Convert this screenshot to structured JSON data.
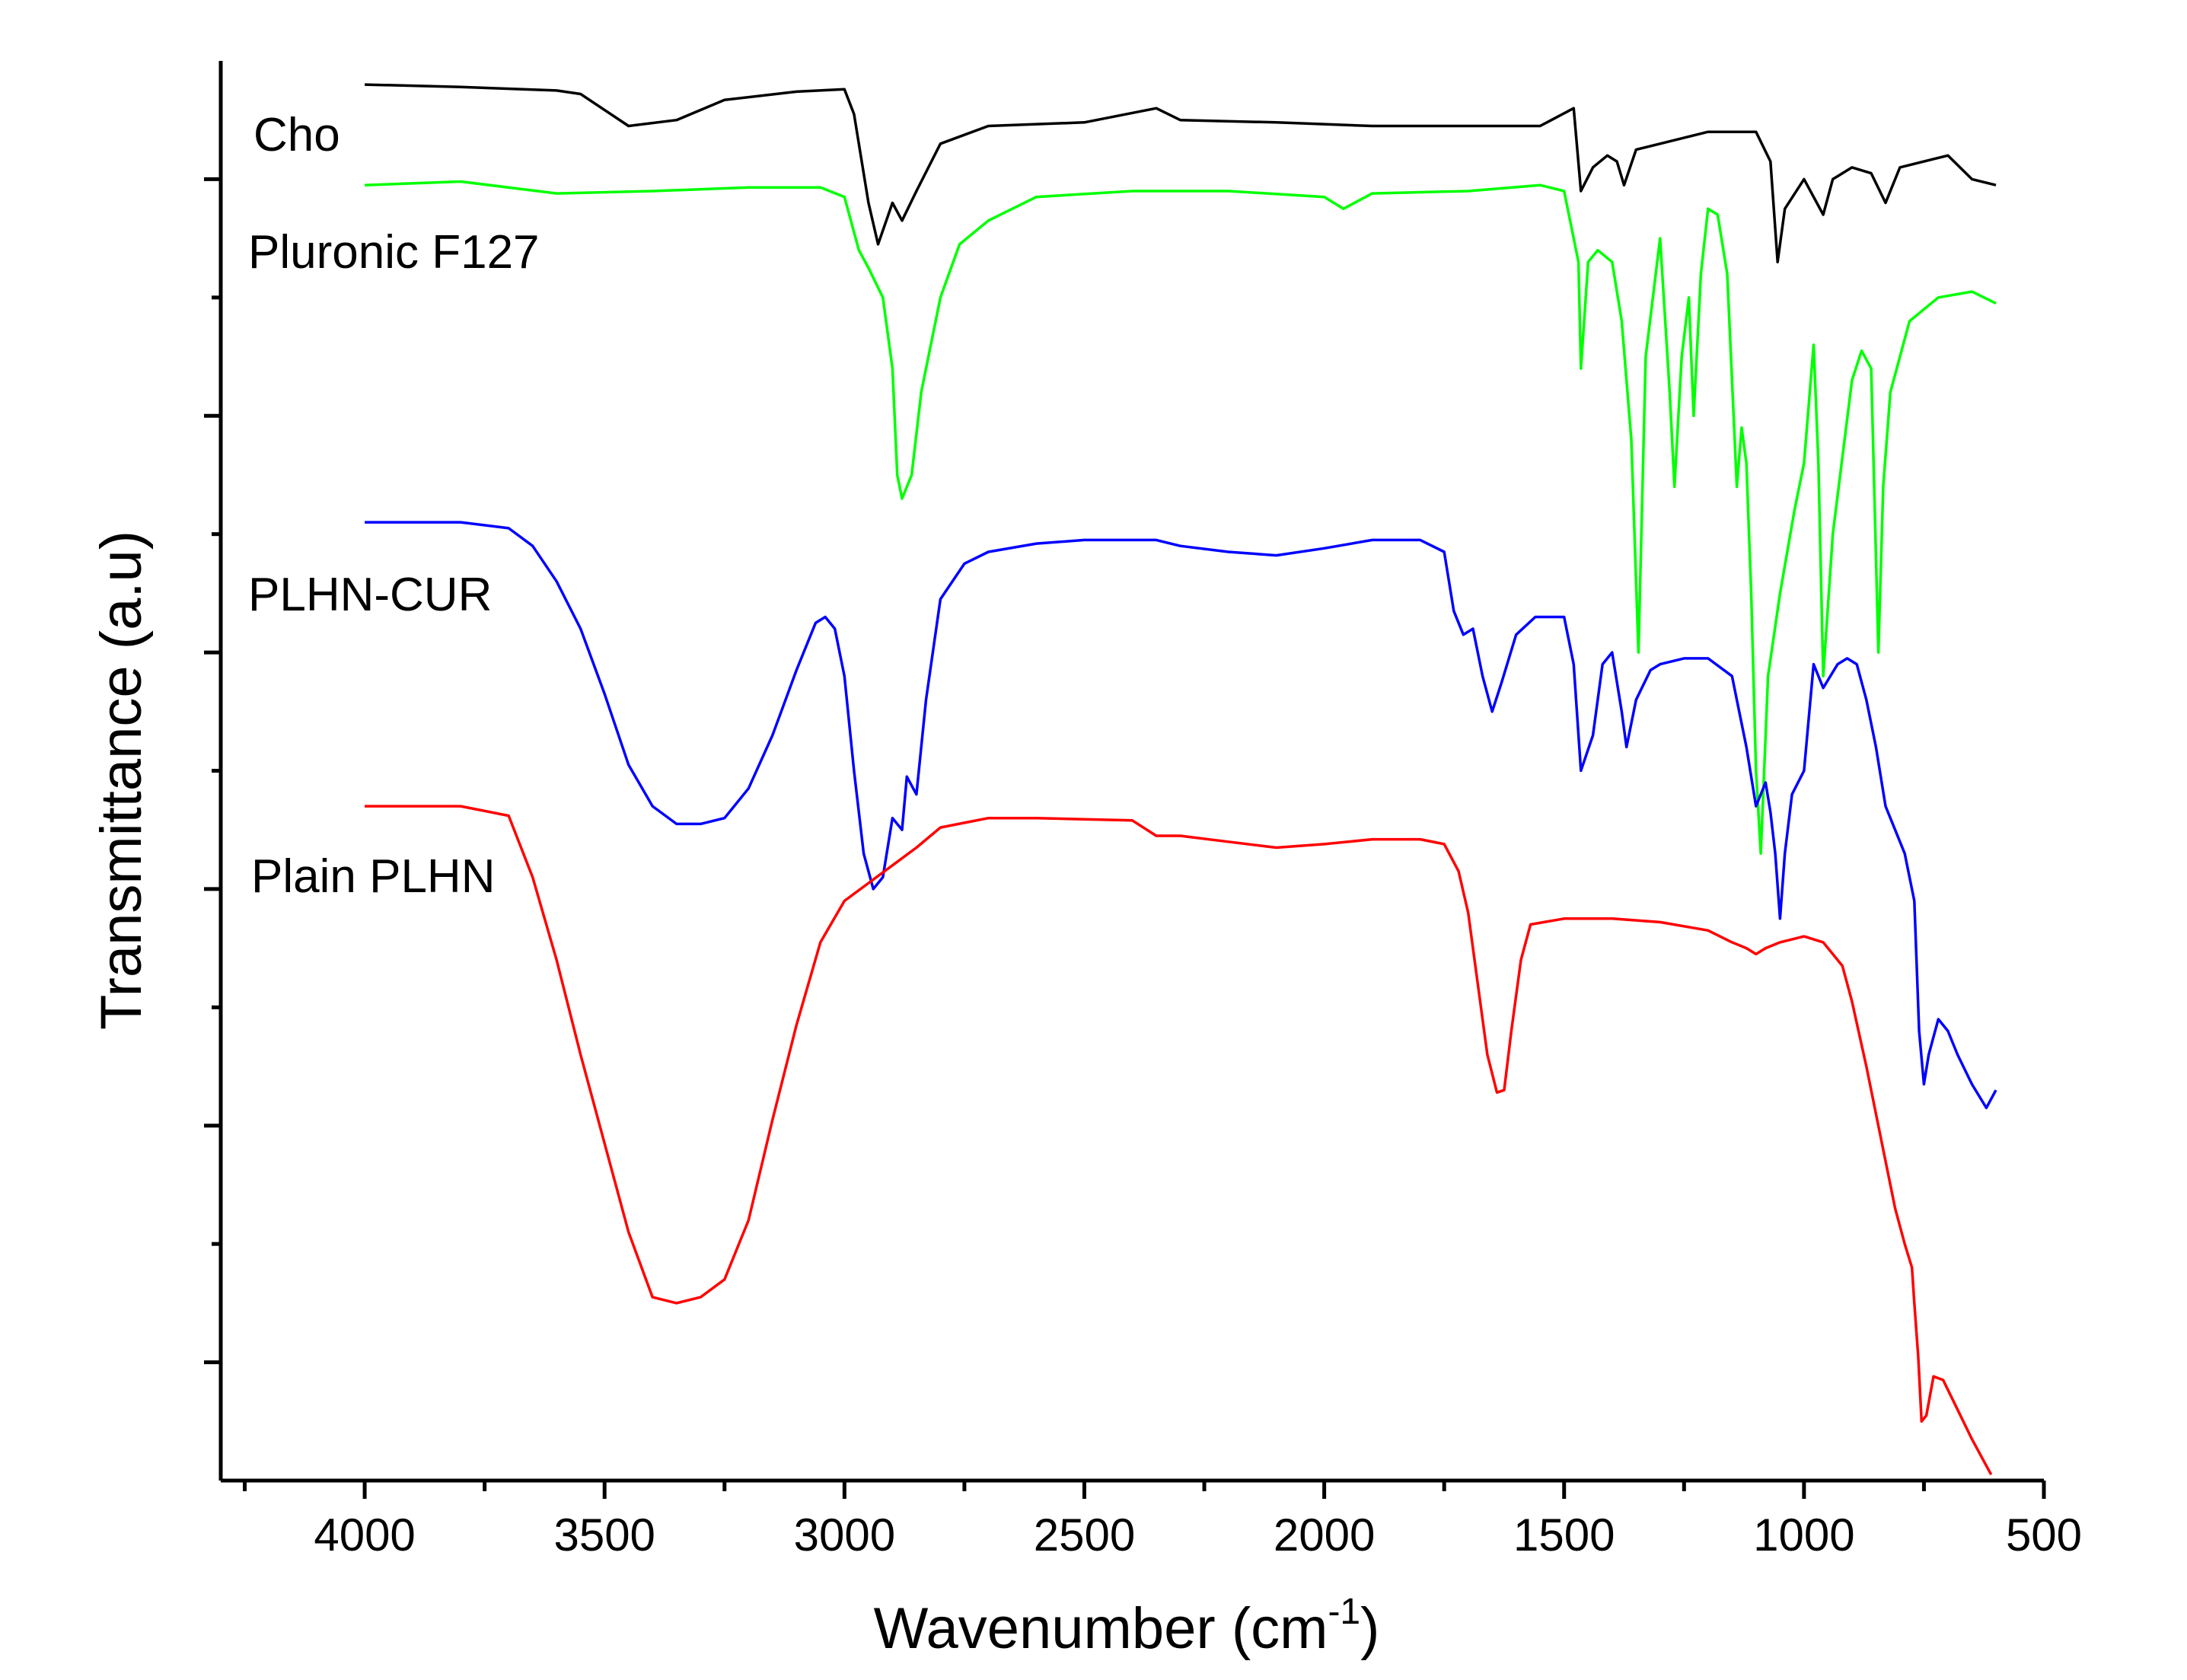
{
  "chart_data": {
    "type": "line",
    "title": "",
    "xlabel": "Wavenumber (cm",
    "xlabel_sup": "-1",
    "xlabel_close": ")",
    "ylabel": "Transmittance (a.u)",
    "xlim": [
      4300,
      500
    ],
    "ylim": [
      0,
      12
    ],
    "x_ticks": [
      4000,
      3500,
      3000,
      2500,
      2000,
      1500,
      1000,
      500
    ],
    "x_tick_labels": [
      "4000",
      "3500",
      "3000",
      "2500",
      "2000",
      "1500",
      "1000",
      "500"
    ],
    "y_major_ticks": [
      1,
      3,
      5,
      7,
      9,
      11
    ],
    "y_minor_ticks": [
      2,
      4,
      6,
      8,
      10
    ],
    "grid": false,
    "series": [
      {
        "name": "Cho",
        "color": "#000000",
        "points": [
          [
            4000,
            11.8
          ],
          [
            3800,
            11.78
          ],
          [
            3600,
            11.75
          ],
          [
            3550,
            11.72
          ],
          [
            3450,
            11.45
          ],
          [
            3350,
            11.5
          ],
          [
            3250,
            11.67
          ],
          [
            3100,
            11.74
          ],
          [
            3000,
            11.76
          ],
          [
            2980,
            11.55
          ],
          [
            2950,
            10.8
          ],
          [
            2930,
            10.45
          ],
          [
            2900,
            10.8
          ],
          [
            2880,
            10.65
          ],
          [
            2850,
            10.9
          ],
          [
            2800,
            11.3
          ],
          [
            2700,
            11.45
          ],
          [
            2500,
            11.48
          ],
          [
            2350,
            11.6
          ],
          [
            2300,
            11.5
          ],
          [
            2100,
            11.48
          ],
          [
            1900,
            11.45
          ],
          [
            1700,
            11.45
          ],
          [
            1550,
            11.45
          ],
          [
            1480,
            11.6
          ],
          [
            1465,
            10.9
          ],
          [
            1440,
            11.1
          ],
          [
            1410,
            11.2
          ],
          [
            1390,
            11.15
          ],
          [
            1375,
            10.95
          ],
          [
            1350,
            11.25
          ],
          [
            1300,
            11.3
          ],
          [
            1200,
            11.4
          ],
          [
            1100,
            11.4
          ],
          [
            1070,
            11.15
          ],
          [
            1055,
            10.3
          ],
          [
            1040,
            10.75
          ],
          [
            1000,
            11.0
          ],
          [
            960,
            10.7
          ],
          [
            940,
            11.0
          ],
          [
            900,
            11.1
          ],
          [
            860,
            11.05
          ],
          [
            830,
            10.8
          ],
          [
            800,
            11.1
          ],
          [
            700,
            11.2
          ],
          [
            650,
            11.0
          ],
          [
            600,
            10.95
          ]
        ]
      },
      {
        "name": "Pluronic F127",
        "color": "#00ff00",
        "points": [
          [
            4000,
            10.95
          ],
          [
            3800,
            10.98
          ],
          [
            3600,
            10.88
          ],
          [
            3400,
            10.9
          ],
          [
            3200,
            10.93
          ],
          [
            3050,
            10.93
          ],
          [
            3000,
            10.85
          ],
          [
            2970,
            10.4
          ],
          [
            2950,
            10.25
          ],
          [
            2920,
            10.0
          ],
          [
            2900,
            9.4
          ],
          [
            2890,
            8.5
          ],
          [
            2880,
            8.3
          ],
          [
            2860,
            8.5
          ],
          [
            2840,
            9.2
          ],
          [
            2800,
            10.0
          ],
          [
            2760,
            10.45
          ],
          [
            2700,
            10.65
          ],
          [
            2600,
            10.85
          ],
          [
            2400,
            10.9
          ],
          [
            2200,
            10.9
          ],
          [
            2000,
            10.85
          ],
          [
            1960,
            10.75
          ],
          [
            1900,
            10.88
          ],
          [
            1700,
            10.9
          ],
          [
            1550,
            10.95
          ],
          [
            1500,
            10.9
          ],
          [
            1470,
            10.3
          ],
          [
            1465,
            9.4
          ],
          [
            1450,
            10.3
          ],
          [
            1430,
            10.4
          ],
          [
            1400,
            10.3
          ],
          [
            1380,
            9.8
          ],
          [
            1360,
            8.8
          ],
          [
            1345,
            7.0
          ],
          [
            1330,
            9.5
          ],
          [
            1300,
            10.5
          ],
          [
            1280,
            9.2
          ],
          [
            1270,
            8.4
          ],
          [
            1255,
            9.5
          ],
          [
            1240,
            10.0
          ],
          [
            1230,
            9.0
          ],
          [
            1215,
            10.2
          ],
          [
            1200,
            10.75
          ],
          [
            1180,
            10.7
          ],
          [
            1160,
            10.2
          ],
          [
            1140,
            8.4
          ],
          [
            1130,
            8.9
          ],
          [
            1120,
            8.6
          ],
          [
            1110,
            7.5
          ],
          [
            1100,
            6.0
          ],
          [
            1090,
            5.3
          ],
          [
            1075,
            6.8
          ],
          [
            1050,
            7.5
          ],
          [
            1020,
            8.2
          ],
          [
            1000,
            8.6
          ],
          [
            980,
            9.6
          ],
          [
            970,
            8.6
          ],
          [
            960,
            6.8
          ],
          [
            940,
            8.0
          ],
          [
            900,
            9.3
          ],
          [
            880,
            9.55
          ],
          [
            860,
            9.4
          ],
          [
            845,
            7.0
          ],
          [
            835,
            8.4
          ],
          [
            820,
            9.2
          ],
          [
            780,
            9.8
          ],
          [
            720,
            10.0
          ],
          [
            650,
            10.05
          ],
          [
            600,
            9.95
          ]
        ]
      },
      {
        "name": "PLHN-CUR",
        "color": "#0000ff",
        "points": [
          [
            4000,
            8.1
          ],
          [
            3800,
            8.1
          ],
          [
            3700,
            8.05
          ],
          [
            3650,
            7.9
          ],
          [
            3600,
            7.6
          ],
          [
            3550,
            7.2
          ],
          [
            3500,
            6.65
          ],
          [
            3450,
            6.05
          ],
          [
            3400,
            5.7
          ],
          [
            3350,
            5.55
          ],
          [
            3300,
            5.55
          ],
          [
            3250,
            5.6
          ],
          [
            3200,
            5.85
          ],
          [
            3150,
            6.3
          ],
          [
            3100,
            6.85
          ],
          [
            3060,
            7.25
          ],
          [
            3040,
            7.3
          ],
          [
            3020,
            7.2
          ],
          [
            3000,
            6.8
          ],
          [
            2980,
            6.0
          ],
          [
            2960,
            5.3
          ],
          [
            2940,
            5.0
          ],
          [
            2920,
            5.1
          ],
          [
            2900,
            5.6
          ],
          [
            2880,
            5.5
          ],
          [
            2870,
            5.95
          ],
          [
            2850,
            5.8
          ],
          [
            2830,
            6.6
          ],
          [
            2800,
            7.45
          ],
          [
            2750,
            7.75
          ],
          [
            2700,
            7.85
          ],
          [
            2600,
            7.92
          ],
          [
            2500,
            7.95
          ],
          [
            2350,
            7.95
          ],
          [
            2300,
            7.9
          ],
          [
            2200,
            7.85
          ],
          [
            2100,
            7.82
          ],
          [
            2000,
            7.88
          ],
          [
            1900,
            7.95
          ],
          [
            1800,
            7.95
          ],
          [
            1750,
            7.85
          ],
          [
            1730,
            7.35
          ],
          [
            1710,
            7.15
          ],
          [
            1690,
            7.2
          ],
          [
            1670,
            6.8
          ],
          [
            1650,
            6.5
          ],
          [
            1630,
            6.75
          ],
          [
            1600,
            7.15
          ],
          [
            1560,
            7.3
          ],
          [
            1500,
            7.3
          ],
          [
            1480,
            6.9
          ],
          [
            1465,
            6.0
          ],
          [
            1440,
            6.3
          ],
          [
            1420,
            6.9
          ],
          [
            1400,
            7.0
          ],
          [
            1380,
            6.5
          ],
          [
            1370,
            6.2
          ],
          [
            1350,
            6.6
          ],
          [
            1320,
            6.85
          ],
          [
            1300,
            6.9
          ],
          [
            1250,
            6.95
          ],
          [
            1200,
            6.95
          ],
          [
            1150,
            6.8
          ],
          [
            1120,
            6.2
          ],
          [
            1100,
            5.7
          ],
          [
            1080,
            5.9
          ],
          [
            1070,
            5.65
          ],
          [
            1060,
            5.3
          ],
          [
            1050,
            4.75
          ],
          [
            1040,
            5.3
          ],
          [
            1025,
            5.8
          ],
          [
            1000,
            6.0
          ],
          [
            980,
            6.9
          ],
          [
            960,
            6.7
          ],
          [
            930,
            6.9
          ],
          [
            910,
            6.95
          ],
          [
            890,
            6.9
          ],
          [
            870,
            6.6
          ],
          [
            850,
            6.2
          ],
          [
            830,
            5.7
          ],
          [
            810,
            5.5
          ],
          [
            790,
            5.3
          ],
          [
            770,
            4.9
          ],
          [
            760,
            3.8
          ],
          [
            750,
            3.35
          ],
          [
            740,
            3.6
          ],
          [
            720,
            3.9
          ],
          [
            700,
            3.8
          ],
          [
            680,
            3.6
          ],
          [
            650,
            3.35
          ],
          [
            620,
            3.15
          ],
          [
            600,
            3.3
          ]
        ]
      },
      {
        "name": "Plain PLHN",
        "color": "#ff0000",
        "points": [
          [
            4000,
            5.7
          ],
          [
            3800,
            5.7
          ],
          [
            3700,
            5.62
          ],
          [
            3650,
            5.1
          ],
          [
            3600,
            4.4
          ],
          [
            3550,
            3.6
          ],
          [
            3500,
            2.85
          ],
          [
            3450,
            2.1
          ],
          [
            3400,
            1.55
          ],
          [
            3350,
            1.5
          ],
          [
            3300,
            1.55
          ],
          [
            3250,
            1.7
          ],
          [
            3200,
            2.2
          ],
          [
            3150,
            3.05
          ],
          [
            3100,
            3.85
          ],
          [
            3050,
            4.55
          ],
          [
            3000,
            4.9
          ],
          [
            2950,
            5.05
          ],
          [
            2900,
            5.2
          ],
          [
            2850,
            5.35
          ],
          [
            2800,
            5.52
          ],
          [
            2700,
            5.6
          ],
          [
            2600,
            5.6
          ],
          [
            2400,
            5.58
          ],
          [
            2350,
            5.45
          ],
          [
            2300,
            5.45
          ],
          [
            2200,
            5.4
          ],
          [
            2100,
            5.35
          ],
          [
            2000,
            5.38
          ],
          [
            1900,
            5.42
          ],
          [
            1800,
            5.42
          ],
          [
            1750,
            5.38
          ],
          [
            1720,
            5.15
          ],
          [
            1700,
            4.8
          ],
          [
            1680,
            4.2
          ],
          [
            1660,
            3.6
          ],
          [
            1640,
            3.28
          ],
          [
            1625,
            3.3
          ],
          [
            1610,
            3.8
          ],
          [
            1590,
            4.4
          ],
          [
            1570,
            4.7
          ],
          [
            1500,
            4.75
          ],
          [
            1400,
            4.75
          ],
          [
            1300,
            4.72
          ],
          [
            1200,
            4.65
          ],
          [
            1150,
            4.55
          ],
          [
            1120,
            4.5
          ],
          [
            1100,
            4.45
          ],
          [
            1080,
            4.5
          ],
          [
            1050,
            4.55
          ],
          [
            1000,
            4.6
          ],
          [
            960,
            4.55
          ],
          [
            920,
            4.35
          ],
          [
            900,
            4.05
          ],
          [
            870,
            3.5
          ],
          [
            840,
            2.9
          ],
          [
            810,
            2.3
          ],
          [
            790,
            2.0
          ],
          [
            775,
            1.8
          ],
          [
            770,
            1.5
          ],
          [
            762,
            1.05
          ],
          [
            755,
            0.5
          ],
          [
            745,
            0.55
          ],
          [
            730,
            0.88
          ],
          [
            710,
            0.85
          ],
          [
            680,
            0.6
          ],
          [
            650,
            0.35
          ],
          [
            630,
            0.2
          ],
          [
            610,
            0.05
          ]
        ]
      }
    ],
    "series_labels": [
      "Cho",
      "Pluronic F127",
      "PLHN-CUR",
      "Plain PLHN"
    ]
  }
}
